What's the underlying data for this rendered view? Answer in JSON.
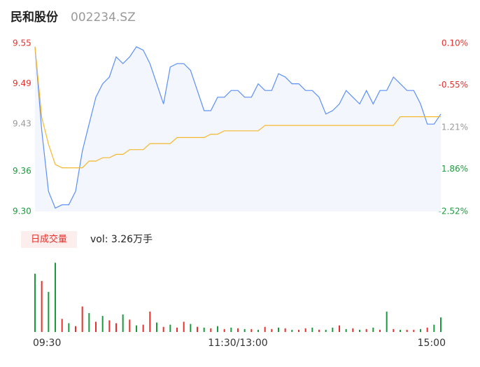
{
  "header": {
    "name": "民和股份",
    "code": "002234.SZ"
  },
  "chart_data": [
    {
      "type": "line",
      "xlim": [
        0,
        240
      ],
      "ylim": [
        9.3,
        9.55
      ],
      "y2lim": [
        -2.52,
        0.1
      ],
      "xticks": [
        {
          "value": 0,
          "label": "09:30"
        },
        {
          "value": 120,
          "label": "11:30/13:00"
        },
        {
          "value": 240,
          "label": "15:00"
        }
      ],
      "yticks": [
        {
          "value": 9.3,
          "label": "9.30"
        },
        {
          "value": 9.36,
          "label": "9.36"
        },
        {
          "value": 9.43,
          "label": "9.43"
        },
        {
          "value": 9.49,
          "label": "9.49"
        },
        {
          "value": 9.55,
          "label": "9.55"
        }
      ],
      "y2ticks": [
        {
          "value": -2.52,
          "label": "-2.52%"
        },
        {
          "value": -1.86,
          "label": "-1.86%"
        },
        {
          "value": -1.21,
          "label": "-1.21%"
        },
        {
          "value": -0.55,
          "label": "-0.55%"
        },
        {
          "value": 0.1,
          "label": "0.10%"
        }
      ],
      "y2tick_colors": [
        "#1a9b3b",
        "#1a9b3b",
        "#999999",
        "#e8312c",
        "#e8312c"
      ],
      "ytick_colors": [
        "#1a9b3b",
        "#1a9b3b",
        "#999999",
        "#e8312c",
        "#e8312c"
      ],
      "x": [
        0,
        4,
        8,
        12,
        16,
        20,
        24,
        28,
        32,
        36,
        40,
        44,
        48,
        52,
        56,
        60,
        64,
        68,
        72,
        76,
        80,
        84,
        88,
        92,
        96,
        100,
        104,
        108,
        112,
        116,
        120,
        124,
        128,
        132,
        136,
        140,
        144,
        148,
        152,
        156,
        160,
        164,
        168,
        172,
        176,
        180,
        184,
        188,
        192,
        196,
        200,
        204,
        208,
        212,
        216,
        220,
        224,
        228,
        232,
        236,
        240
      ],
      "series": [
        {
          "name": "price",
          "color": "#5b8ff9",
          "values": [
            9.545,
            9.42,
            9.33,
            9.305,
            9.31,
            9.31,
            9.33,
            9.39,
            9.43,
            9.47,
            9.49,
            9.5,
            9.53,
            9.52,
            9.53,
            9.545,
            9.54,
            9.52,
            9.49,
            9.46,
            9.515,
            9.52,
            9.52,
            9.51,
            9.48,
            9.45,
            9.45,
            9.47,
            9.47,
            9.48,
            9.48,
            9.47,
            9.47,
            9.49,
            9.48,
            9.48,
            9.505,
            9.5,
            9.49,
            9.49,
            9.48,
            9.48,
            9.47,
            9.445,
            9.45,
            9.46,
            9.48,
            9.47,
            9.46,
            9.48,
            9.46,
            9.48,
            9.48,
            9.5,
            9.49,
            9.48,
            9.48,
            9.46,
            9.43,
            9.43,
            9.445
          ]
        },
        {
          "name": "average",
          "color": "#f5b82e",
          "values": [
            9.545,
            9.44,
            9.4,
            9.37,
            9.365,
            9.365,
            9.365,
            9.365,
            9.375,
            9.375,
            9.38,
            9.38,
            9.385,
            9.385,
            9.392,
            9.392,
            9.392,
            9.401,
            9.401,
            9.401,
            9.401,
            9.41,
            9.41,
            9.41,
            9.41,
            9.41,
            9.415,
            9.415,
            9.42,
            9.42,
            9.42,
            9.42,
            9.42,
            9.42,
            9.428,
            9.428,
            9.428,
            9.428,
            9.428,
            9.428,
            9.428,
            9.428,
            9.428,
            9.428,
            9.428,
            9.428,
            9.428,
            9.428,
            9.428,
            9.428,
            9.428,
            9.428,
            9.428,
            9.428,
            9.441,
            9.441,
            9.441,
            9.441,
            9.441,
            9.441,
            9.441
          ]
        }
      ]
    },
    {
      "type": "bar",
      "badge": "日成交量",
      "label": "vol: 3.26万手",
      "ylim": [
        0,
        1000
      ],
      "xlim": [
        0,
        240
      ],
      "x": [
        0,
        4,
        8,
        12,
        16,
        20,
        24,
        28,
        32,
        36,
        40,
        44,
        48,
        52,
        56,
        60,
        64,
        68,
        72,
        76,
        80,
        84,
        88,
        92,
        96,
        100,
        104,
        108,
        112,
        116,
        120,
        124,
        128,
        132,
        136,
        140,
        144,
        148,
        152,
        156,
        160,
        164,
        168,
        172,
        176,
        180,
        184,
        188,
        192,
        196,
        200,
        204,
        208,
        212,
        216,
        220,
        224,
        228,
        232,
        236,
        240
      ],
      "values": [
        800,
        700,
        550,
        950,
        180,
        120,
        80,
        350,
        260,
        140,
        220,
        160,
        120,
        240,
        170,
        90,
        100,
        280,
        130,
        70,
        100,
        60,
        140,
        110,
        70,
        60,
        50,
        80,
        40,
        60,
        50,
        40,
        40,
        30,
        70,
        40,
        60,
        50,
        30,
        30,
        50,
        60,
        30,
        30,
        60,
        90,
        40,
        50,
        30,
        40,
        60,
        30,
        280,
        40,
        30,
        30,
        30,
        40,
        60,
        100,
        200
      ],
      "colors": [
        "#1a9b3b",
        "#e8312c",
        "#1a9b3b",
        "#1a9b3b",
        "#e8312c",
        "#1a9b3b",
        "#e8312c",
        "#e8312c",
        "#1a9b3b",
        "#e8312c",
        "#1a9b3b",
        "#e8312c",
        "#e8312c",
        "#1a9b3b",
        "#e8312c",
        "#1a9b3b",
        "#e8312c",
        "#e8312c",
        "#1a9b3b",
        "#e8312c",
        "#1a9b3b",
        "#e8312c",
        "#e8312c",
        "#1a9b3b",
        "#e8312c",
        "#1a9b3b",
        "#e8312c",
        "#1a9b3b",
        "#e8312c",
        "#1a9b3b",
        "#e8312c",
        "#1a9b3b",
        "#e8312c",
        "#1a9b3b",
        "#e8312c",
        "#e8312c",
        "#1a9b3b",
        "#e8312c",
        "#1a9b3b",
        "#e8312c",
        "#e8312c",
        "#1a9b3b",
        "#e8312c",
        "#1a9b3b",
        "#1a9b3b",
        "#e8312c",
        "#1a9b3b",
        "#e8312c",
        "#1a9b3b",
        "#e8312c",
        "#1a9b3b",
        "#e8312c",
        "#1a9b3b",
        "#e8312c",
        "#1a9b3b",
        "#e8312c",
        "#e8312c",
        "#1a9b3b",
        "#e8312c",
        "#1a9b3b",
        "#1a9b3b"
      ]
    }
  ]
}
